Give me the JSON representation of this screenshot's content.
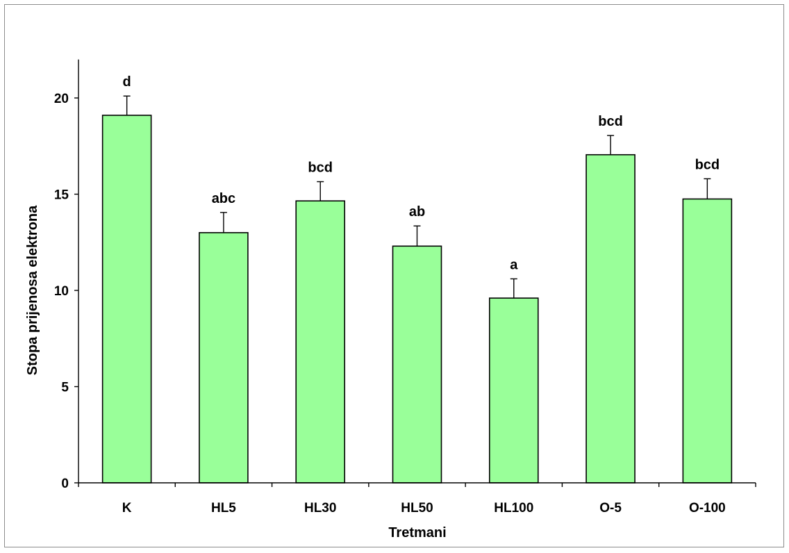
{
  "chart_data": {
    "type": "bar",
    "title": "",
    "xlabel": "Tretmani",
    "ylabel": "Stopa prijenosa elektrona",
    "categories": [
      "K",
      "HL5",
      "HL30",
      "HL50",
      "HL100",
      "O-5",
      "O-100"
    ],
    "values": [
      19.1,
      13.0,
      14.65,
      12.3,
      9.6,
      17.05,
      14.75
    ],
    "error": [
      1.0,
      1.05,
      1.0,
      1.05,
      1.0,
      1.0,
      1.05
    ],
    "annotations": [
      "d",
      "abc",
      "bcd",
      "ab",
      "a",
      "bcd",
      "bcd"
    ],
    "ylim": [
      0,
      22
    ],
    "yticks": [
      0,
      5,
      10,
      15,
      20
    ],
    "ytick_labels": [
      "0",
      "5",
      "10",
      "15",
      "20"
    ],
    "grid": false,
    "legend": "none",
    "bar_color": "#99ff99",
    "edge_color": "#000000"
  }
}
